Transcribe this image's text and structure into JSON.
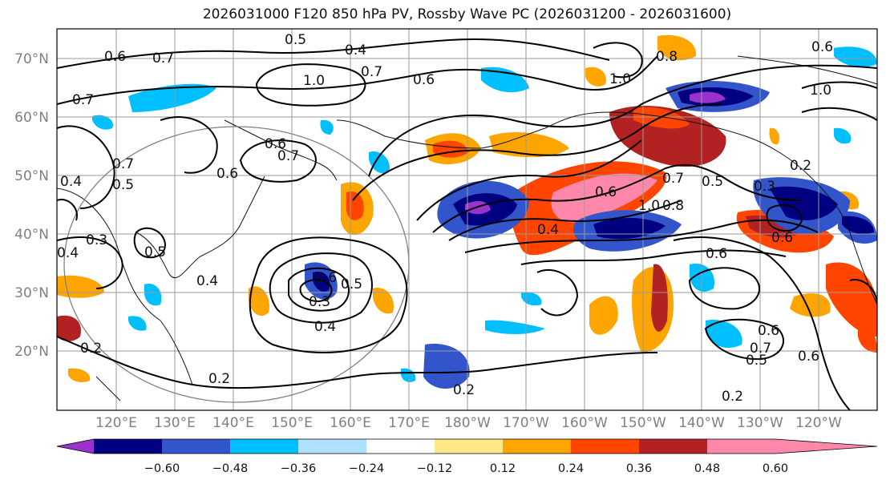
{
  "title": "2026031000 F120 850 hPa PV, Rossby Wave PC (2026031200 - 2026031600)",
  "lat_labels": [
    "70°N",
    "60°N",
    "50°N",
    "40°N",
    "30°N",
    "20°N"
  ],
  "lon_labels": [
    "120°E",
    "130°E",
    "140°E",
    "150°E",
    "160°E",
    "170°E",
    "180°W",
    "170°W",
    "160°W",
    "150°W",
    "140°W",
    "130°W",
    "120°W"
  ],
  "contour_labels": [
    "0.6",
    "0.7",
    "0.5",
    "0.4",
    "0.7",
    "0.6",
    "1.0",
    "0.7",
    "0.6",
    "0.7",
    "0.6",
    "0.7",
    "0.4",
    "0.5",
    "0.3",
    "0.4",
    "0.2",
    "0.4",
    "0.6",
    "0.3",
    "0.4",
    "0.5",
    "0.2",
    "0.6",
    "0.7",
    "1.0",
    "0.8",
    "0.5",
    "0.2",
    "0.3",
    "0.6",
    "0.6",
    "0.2",
    "0.6",
    "0.7",
    "0.5",
    "0.6",
    "0.2",
    "0.6",
    "1.0",
    "0.8",
    "1.0",
    "0.4",
    "0.5"
  ],
  "colorbar": {
    "colors": [
      "#9933cc",
      "#000080",
      "#3355cc",
      "#00bfff",
      "#b0e0ff",
      "#ffffff",
      "#ffe88a",
      "#ffa500",
      "#ff4500",
      "#b22222",
      "#ff88aa"
    ],
    "ticks": [
      "−0.60",
      "−0.48",
      "−0.36",
      "−0.24",
      "−0.12",
      "0.12",
      "0.24",
      "0.36",
      "0.48",
      "0.60"
    ]
  }
}
